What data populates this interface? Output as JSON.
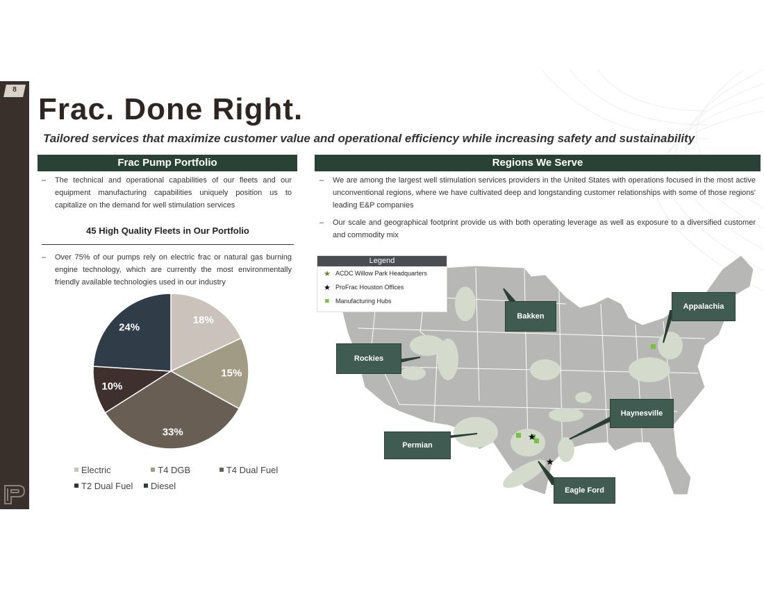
{
  "page_number": "8",
  "title": "Frac. Done Right.",
  "subtitle": "Tailored services that maximize customer value and operational efficiency while increasing safety and sustainability",
  "left": {
    "header": "Frac Pump Portfolio",
    "bullet1": "The technical and operational capabilities of our fleets and our equipment manufacturing capabilities uniquely position us to capitalize on the demand for well stimulation services",
    "fleets_title": "45 High Quality Fleets in Our Portfolio",
    "bullet2": "Over 75% of our pumps rely on electric frac or natural gas burning engine technology, which are currently the most environmentally friendly available technologies used in our industry"
  },
  "right": {
    "header": "Regions We Serve",
    "bullet1": "We are among the largest well stimulation services providers in the United States with operations focused in the most active unconventional regions, where we have cultivated deep and longstanding customer relationships with some of those regions' leading E&P companies",
    "bullet2": "Our scale and geographical footprint provide us with both operating leverage as well as exposure to a diversified customer and commodity mix"
  },
  "map": {
    "legend_title": "Legend",
    "legend_items": [
      {
        "symbol": "★",
        "label": "ACDC Willow Park Headquarters",
        "color": "#6a7f2e"
      },
      {
        "symbol": "★",
        "label": "ProFrac Houston Offices",
        "color": "#000000"
      },
      {
        "symbol": "■",
        "label": "Manufacturing Hubs",
        "color": "#7ac143"
      }
    ],
    "regions": [
      "Bakken",
      "Appalachia",
      "Rockies",
      "Haynesville",
      "Permian",
      "Eagle Ford"
    ]
  },
  "chart_data": {
    "type": "pie",
    "categories": [
      "Electric",
      "T4 DGB",
      "T4 Dual Fuel",
      "T2 Dual Fuel",
      "Diesel"
    ],
    "values": [
      18,
      15,
      33,
      10,
      24
    ],
    "labels": [
      "18%",
      "15%",
      "33%",
      "10%",
      "24%"
    ],
    "colors": [
      "#cbc3bb",
      "#a19a85",
      "#695e54",
      "#3e302c",
      "#303c48"
    ],
    "legend_position": "bottom"
  }
}
